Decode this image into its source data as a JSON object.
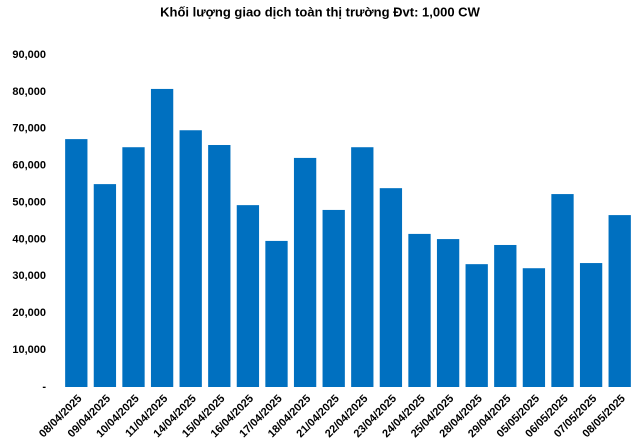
{
  "chart_data": {
    "type": "bar",
    "title": "Khối lượng giao dịch toàn thị trường Đvt: 1,000 CW",
    "categories": [
      "08/04/2025",
      "09/04/2025",
      "10/04/2025",
      "11/04/2025",
      "14/04/2025",
      "15/04/2025",
      "16/04/2025",
      "17/04/2025",
      "18/04/2025",
      "21/04/2025",
      "22/04/2025",
      "23/04/2025",
      "24/04/2025",
      "25/04/2025",
      "28/04/2025",
      "29/04/2025",
      "05/05/2025",
      "06/05/2025",
      "07/05/2025",
      "08/05/2025"
    ],
    "values": [
      67200,
      55000,
      65000,
      80800,
      69600,
      65600,
      49300,
      39600,
      62100,
      48000,
      65000,
      53900,
      41500,
      40100,
      33300,
      38500,
      32200,
      52300,
      33600,
      46600
    ],
    "color": "#0070c0",
    "ylim": [
      0,
      90000
    ],
    "yticks": [
      {
        "value": 0,
        "label": "-"
      },
      {
        "value": 10000,
        "label": "10,000"
      },
      {
        "value": 20000,
        "label": "20,000"
      },
      {
        "value": 30000,
        "label": "30,000"
      },
      {
        "value": 40000,
        "label": "40,000"
      },
      {
        "value": 50000,
        "label": "50,000"
      },
      {
        "value": 60000,
        "label": "60,000"
      },
      {
        "value": 70000,
        "label": "70,000"
      },
      {
        "value": 80000,
        "label": "80,000"
      },
      {
        "value": 90000,
        "label": "90,000"
      }
    ],
    "grid": false
  }
}
